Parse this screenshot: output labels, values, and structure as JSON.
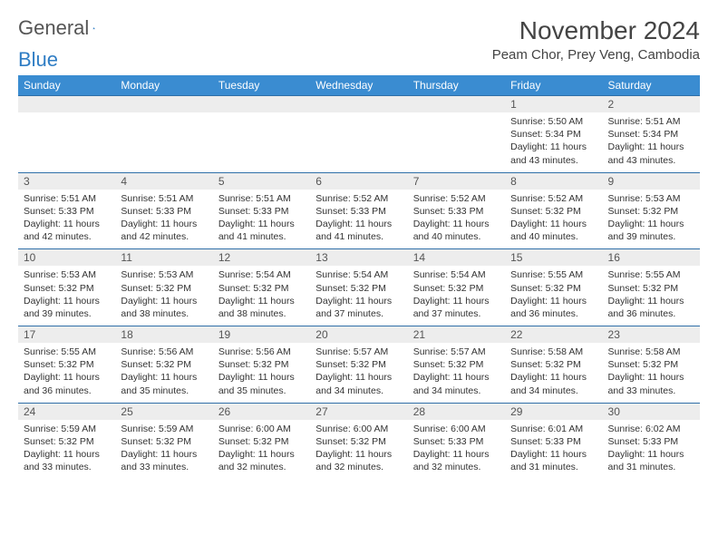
{
  "logo": {
    "text1": "General",
    "text2": "Blue"
  },
  "title": "November 2024",
  "location": "Peam Chor, Prey Veng, Cambodia",
  "colors": {
    "header_bg": "#3a8cd1",
    "header_text": "#ffffff",
    "daynum_bg": "#ededed",
    "border": "#2f6fa8",
    "logo_blue": "#2f7dc4"
  },
  "day_headers": [
    "Sunday",
    "Monday",
    "Tuesday",
    "Wednesday",
    "Thursday",
    "Friday",
    "Saturday"
  ],
  "weeks": [
    [
      null,
      null,
      null,
      null,
      null,
      {
        "n": "1",
        "sr": "5:50 AM",
        "ss": "5:34 PM",
        "dl": "11 hours and 43 minutes."
      },
      {
        "n": "2",
        "sr": "5:51 AM",
        "ss": "5:34 PM",
        "dl": "11 hours and 43 minutes."
      }
    ],
    [
      {
        "n": "3",
        "sr": "5:51 AM",
        "ss": "5:33 PM",
        "dl": "11 hours and 42 minutes."
      },
      {
        "n": "4",
        "sr": "5:51 AM",
        "ss": "5:33 PM",
        "dl": "11 hours and 42 minutes."
      },
      {
        "n": "5",
        "sr": "5:51 AM",
        "ss": "5:33 PM",
        "dl": "11 hours and 41 minutes."
      },
      {
        "n": "6",
        "sr": "5:52 AM",
        "ss": "5:33 PM",
        "dl": "11 hours and 41 minutes."
      },
      {
        "n": "7",
        "sr": "5:52 AM",
        "ss": "5:33 PM",
        "dl": "11 hours and 40 minutes."
      },
      {
        "n": "8",
        "sr": "5:52 AM",
        "ss": "5:32 PM",
        "dl": "11 hours and 40 minutes."
      },
      {
        "n": "9",
        "sr": "5:53 AM",
        "ss": "5:32 PM",
        "dl": "11 hours and 39 minutes."
      }
    ],
    [
      {
        "n": "10",
        "sr": "5:53 AM",
        "ss": "5:32 PM",
        "dl": "11 hours and 39 minutes."
      },
      {
        "n": "11",
        "sr": "5:53 AM",
        "ss": "5:32 PM",
        "dl": "11 hours and 38 minutes."
      },
      {
        "n": "12",
        "sr": "5:54 AM",
        "ss": "5:32 PM",
        "dl": "11 hours and 38 minutes."
      },
      {
        "n": "13",
        "sr": "5:54 AM",
        "ss": "5:32 PM",
        "dl": "11 hours and 37 minutes."
      },
      {
        "n": "14",
        "sr": "5:54 AM",
        "ss": "5:32 PM",
        "dl": "11 hours and 37 minutes."
      },
      {
        "n": "15",
        "sr": "5:55 AM",
        "ss": "5:32 PM",
        "dl": "11 hours and 36 minutes."
      },
      {
        "n": "16",
        "sr": "5:55 AM",
        "ss": "5:32 PM",
        "dl": "11 hours and 36 minutes."
      }
    ],
    [
      {
        "n": "17",
        "sr": "5:55 AM",
        "ss": "5:32 PM",
        "dl": "11 hours and 36 minutes."
      },
      {
        "n": "18",
        "sr": "5:56 AM",
        "ss": "5:32 PM",
        "dl": "11 hours and 35 minutes."
      },
      {
        "n": "19",
        "sr": "5:56 AM",
        "ss": "5:32 PM",
        "dl": "11 hours and 35 minutes."
      },
      {
        "n": "20",
        "sr": "5:57 AM",
        "ss": "5:32 PM",
        "dl": "11 hours and 34 minutes."
      },
      {
        "n": "21",
        "sr": "5:57 AM",
        "ss": "5:32 PM",
        "dl": "11 hours and 34 minutes."
      },
      {
        "n": "22",
        "sr": "5:58 AM",
        "ss": "5:32 PM",
        "dl": "11 hours and 34 minutes."
      },
      {
        "n": "23",
        "sr": "5:58 AM",
        "ss": "5:32 PM",
        "dl": "11 hours and 33 minutes."
      }
    ],
    [
      {
        "n": "24",
        "sr": "5:59 AM",
        "ss": "5:32 PM",
        "dl": "11 hours and 33 minutes."
      },
      {
        "n": "25",
        "sr": "5:59 AM",
        "ss": "5:32 PM",
        "dl": "11 hours and 33 minutes."
      },
      {
        "n": "26",
        "sr": "6:00 AM",
        "ss": "5:32 PM",
        "dl": "11 hours and 32 minutes."
      },
      {
        "n": "27",
        "sr": "6:00 AM",
        "ss": "5:32 PM",
        "dl": "11 hours and 32 minutes."
      },
      {
        "n": "28",
        "sr": "6:00 AM",
        "ss": "5:33 PM",
        "dl": "11 hours and 32 minutes."
      },
      {
        "n": "29",
        "sr": "6:01 AM",
        "ss": "5:33 PM",
        "dl": "11 hours and 31 minutes."
      },
      {
        "n": "30",
        "sr": "6:02 AM",
        "ss": "5:33 PM",
        "dl": "11 hours and 31 minutes."
      }
    ]
  ],
  "labels": {
    "sunrise": "Sunrise:",
    "sunset": "Sunset:",
    "daylight": "Daylight:"
  }
}
